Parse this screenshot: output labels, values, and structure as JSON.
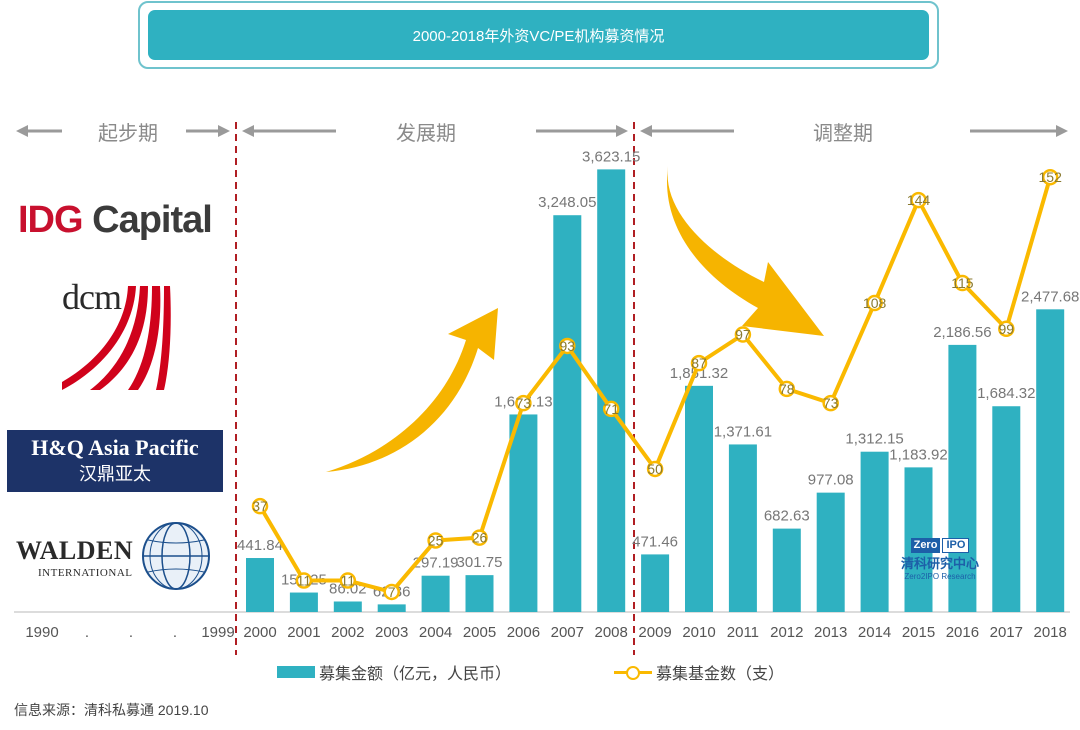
{
  "colors": {
    "bar": "#2fb1c1",
    "line": "#fab900",
    "arrow": "#f6b400",
    "divider": "#b01e23",
    "axis": "#d0d0d0",
    "label": "#777777",
    "period": "#8a8a8a",
    "title_bg": "#2fb1c1"
  },
  "header": {
    "title": "2000-2018年外资VC/PE机构募资情况"
  },
  "periods": [
    {
      "label": "起步期"
    },
    {
      "label": "发展期"
    },
    {
      "label": "调整期"
    }
  ],
  "logos": {
    "idg": {
      "part1": "IDG",
      "part2": " Capital"
    },
    "dcm": {
      "text": "dcm"
    },
    "hq": {
      "en": "H&Q Asia Pacific",
      "cn": "汉鼎亚太"
    },
    "walden": {
      "name": "WALDEN",
      "sub": "INTERNATIONAL"
    },
    "zero2ipo": {
      "badge_left": "Zero",
      "badge_right": "IPO",
      "cn": "清科研究中心",
      "en": "Zero2IPO Research"
    }
  },
  "chart_data": {
    "type": "bar",
    "title": "2000-2018年外资VC/PE机构募资情况",
    "x_prefix_labels": [
      "1990",
      ".",
      ".",
      ".",
      "1999"
    ],
    "categories": [
      "2000",
      "2001",
      "2002",
      "2003",
      "2004",
      "2005",
      "2006",
      "2007",
      "2008",
      "2009",
      "2010",
      "2011",
      "2012",
      "2013",
      "2014",
      "2015",
      "2016",
      "2017",
      "2018"
    ],
    "series": [
      {
        "name": "募集金额（亿元，人民币）",
        "type": "bar",
        "axis": "left",
        "values": [
          441.84,
          159.25,
          86.02,
          62.36,
          297.19,
          301.75,
          1617.13,
          3248.05,
          3623.15,
          471.46,
          1851.32,
          1371.61,
          682.63,
          977.08,
          1312.15,
          1183.92,
          2186.56,
          1684.32,
          2477.68
        ],
        "labels": [
          "441.84",
          "159.25",
          "86.02",
          "62.36",
          "297.19",
          "301.75",
          "1,617.13",
          "3,248.05",
          "3,623.15",
          "471.46",
          "1,851.32",
          "1,371.61",
          "682.63",
          "977.08",
          "1,312.15",
          "1,183.92",
          "2,186.56",
          "1,684.32",
          "2,477.68"
        ]
      },
      {
        "name": "募集基金数（支）",
        "type": "line",
        "axis": "right",
        "values": [
          37,
          11,
          11,
          7,
          25,
          26,
          73,
          93,
          71,
          50,
          87,
          97,
          78,
          73,
          108,
          144,
          115,
          99,
          152
        ],
        "labels": [
          "37",
          "11",
          "11",
          "7",
          "25",
          "26",
          "73",
          "93",
          "71",
          "50",
          "87",
          "97",
          "78",
          "73",
          "108",
          "144",
          "115",
          "99",
          "152"
        ]
      }
    ],
    "ylim_left": [
      0,
      3700
    ],
    "ylim_right": [
      0,
      165
    ],
    "legend_position": "bottom",
    "grid": false
  },
  "legend": {
    "bar_label": "募集金额（亿元，人民币）",
    "line_label": "募集基金数（支）"
  },
  "source": {
    "text": "信息来源：清科私募通 2019.10"
  }
}
